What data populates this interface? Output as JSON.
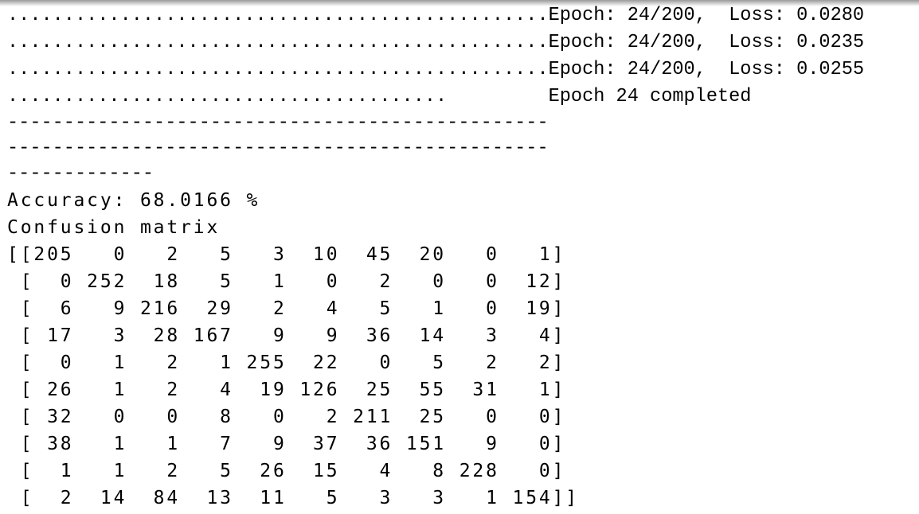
{
  "log_lines": [
    "................................................Epoch: 24/200,  Loss: 0.0280",
    "................................................Epoch: 24/200,  Loss: 0.0235",
    "................................................Epoch: 24/200,  Loss: 0.0255",
    ".......................................         Epoch 24 completed",
    "------------------------------------------------",
    "------------------------------------------------",
    "-------------"
  ],
  "accuracy_line": "Accuracy: 68.0166 %",
  "matrix_label": "Confusion matrix",
  "confusion_matrix": [
    [
      205,
      0,
      2,
      5,
      3,
      10,
      45,
      20,
      0,
      1
    ],
    [
      0,
      252,
      18,
      5,
      1,
      0,
      2,
      0,
      0,
      12
    ],
    [
      6,
      9,
      216,
      29,
      2,
      4,
      5,
      1,
      0,
      19
    ],
    [
      17,
      3,
      28,
      167,
      9,
      9,
      36,
      14,
      3,
      4
    ],
    [
      0,
      1,
      2,
      1,
      255,
      22,
      0,
      5,
      2,
      2
    ],
    [
      26,
      1,
      2,
      4,
      19,
      126,
      25,
      55,
      31,
      1
    ],
    [
      32,
      0,
      0,
      8,
      0,
      2,
      211,
      25,
      0,
      0
    ],
    [
      38,
      1,
      1,
      7,
      9,
      37,
      36,
      151,
      9,
      0
    ],
    [
      1,
      1,
      2,
      5,
      26,
      15,
      4,
      8,
      228,
      0
    ],
    [
      2,
      14,
      84,
      13,
      11,
      5,
      3,
      3,
      1,
      154
    ]
  ]
}
